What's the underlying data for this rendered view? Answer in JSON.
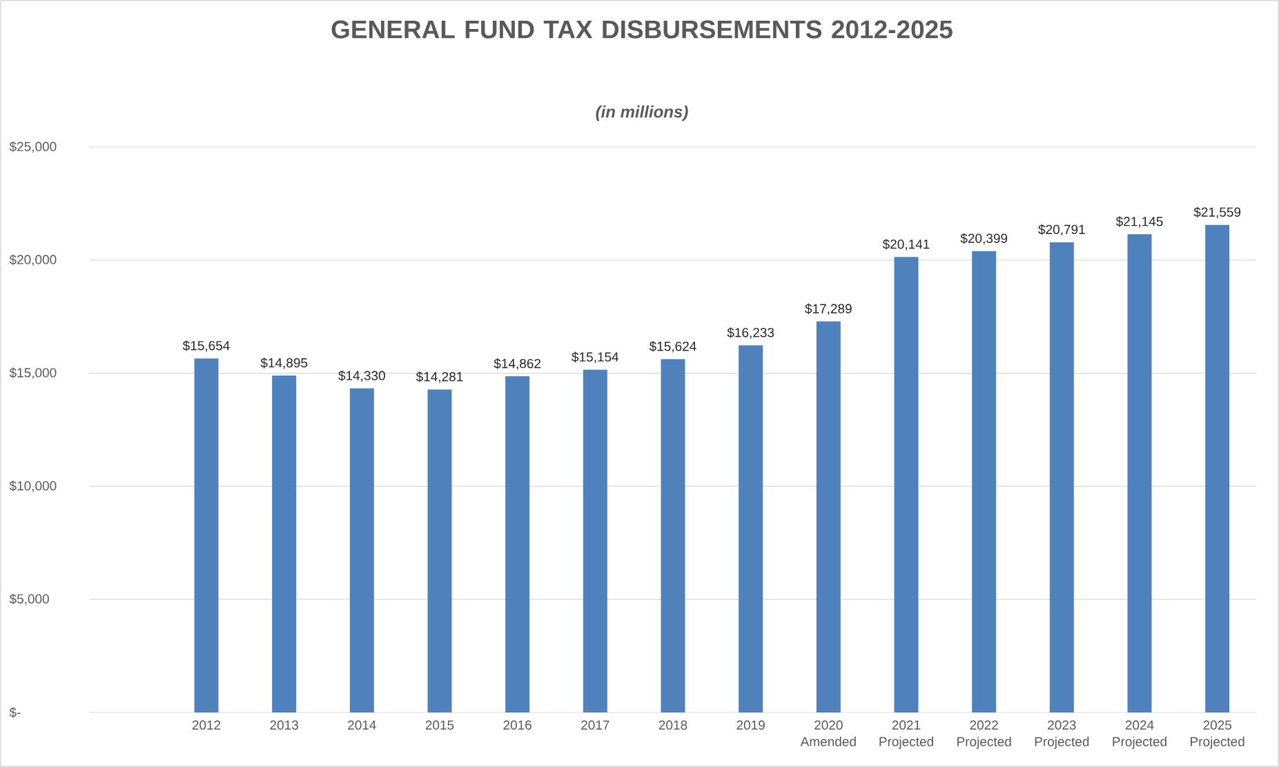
{
  "chart_data": {
    "type": "bar",
    "title": "GENERAL FUND TAX DISBURSEMENTS 2012-2025",
    "subtitle": "(in millions)",
    "categories": [
      null,
      "2012",
      "2013",
      "2014",
      "2015",
      "2016",
      "2017",
      "2018",
      "2019",
      "2020 Amended",
      "2021 Projected",
      "2022 Projected",
      "2023 Projected",
      "2024 Projected",
      "2025 Projected"
    ],
    "values": [
      null,
      15654,
      14895,
      14330,
      14281,
      14862,
      15154,
      15624,
      16233,
      17289,
      20141,
      20399,
      20791,
      21145,
      21559
    ],
    "value_labels": [
      null,
      "$15,654",
      "$14,895",
      "$14,330",
      "$14,281",
      "$14,862",
      "$15,154",
      "$15,624",
      "$16,233",
      "$17,289",
      "$20,141",
      "$20,399",
      "$20,791",
      "$21,145",
      "$21,559"
    ],
    "color": "#4f81bd",
    "ylim": [
      0,
      25000
    ],
    "yticks": [
      {
        "value": 0,
        "label": "$-"
      },
      {
        "value": 5000,
        "label": "$5,000"
      },
      {
        "value": 10000,
        "label": "$10,000"
      },
      {
        "value": 15000,
        "label": "$15,000"
      },
      {
        "value": 20000,
        "label": "$20,000"
      },
      {
        "value": 25000,
        "label": "$25,000"
      }
    ],
    "grid": "y"
  }
}
